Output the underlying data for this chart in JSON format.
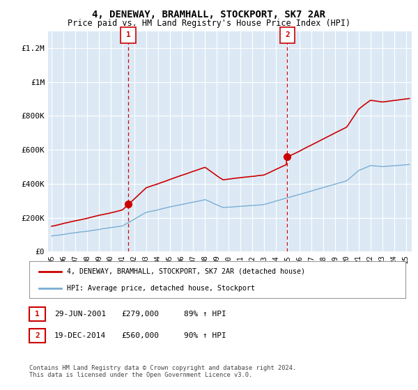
{
  "title": "4, DENEWAY, BRAMHALL, STOCKPORT, SK7 2AR",
  "subtitle": "Price paid vs. HM Land Registry's House Price Index (HPI)",
  "bg_color": "#dce9f5",
  "red_line_color": "#cc0000",
  "blue_line_color": "#7aadd4",
  "dashed_line_color": "#cc0000",
  "marker1_date": 2001.49,
  "marker2_date": 2014.96,
  "marker1_value": 279000,
  "marker2_value": 560000,
  "legend_label_red": "4, DENEWAY, BRAMHALL, STOCKPORT, SK7 2AR (detached house)",
  "legend_label_blue": "HPI: Average price, detached house, Stockport",
  "annotation1_date": "29-JUN-2001",
  "annotation1_price": "£279,000",
  "annotation1_hpi": "89% ↑ HPI",
  "annotation2_date": "19-DEC-2014",
  "annotation2_price": "£560,000",
  "annotation2_hpi": "90% ↑ HPI",
  "footer": "Contains HM Land Registry data © Crown copyright and database right 2024.\nThis data is licensed under the Open Government Licence v3.0.",
  "ylim": [
    0,
    1300000
  ],
  "xlim_start": 1994.7,
  "xlim_end": 2025.5,
  "yticks": [
    0,
    200000,
    400000,
    600000,
    800000,
    1000000,
    1200000
  ],
  "ytick_labels": [
    "£0",
    "£200K",
    "£400K",
    "£600K",
    "£800K",
    "£1M",
    "£1.2M"
  ],
  "xticks": [
    1995,
    1996,
    1997,
    1998,
    1999,
    2000,
    2001,
    2002,
    2003,
    2004,
    2005,
    2006,
    2007,
    2008,
    2009,
    2010,
    2011,
    2012,
    2013,
    2014,
    2015,
    2016,
    2017,
    2018,
    2019,
    2020,
    2021,
    2022,
    2023,
    2024,
    2025
  ],
  "xtick_labels": [
    "95",
    "96",
    "97",
    "98",
    "99",
    "00",
    "01",
    "02",
    "03",
    "04",
    "05",
    "06",
    "07",
    "08",
    "09",
    "10",
    "11",
    "12",
    "13",
    "14",
    "15",
    "16",
    "17",
    "18",
    "19",
    "20",
    "21",
    "22",
    "23",
    "24",
    "25"
  ]
}
